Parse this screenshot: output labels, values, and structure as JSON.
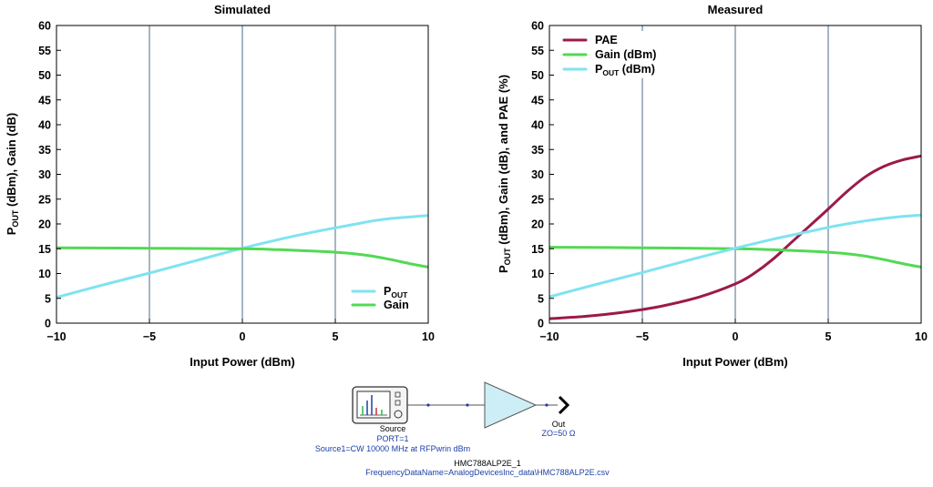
{
  "chart_data": [
    {
      "type": "line",
      "title": "Simulated",
      "xlabel": "Input Power (dBm)",
      "ylabel_main": "P",
      "ylabel_sub": "OUT",
      "ylabel_rest": " (dBm), Gain (dB)",
      "xlim": [
        -10,
        10
      ],
      "ylim": [
        0,
        60
      ],
      "xticks": [
        -10,
        -5,
        0,
        5,
        10
      ],
      "xtick_labels": [
        "−10",
        "−5",
        "0",
        "5",
        "10"
      ],
      "yticks": [
        0,
        5,
        10,
        15,
        20,
        25,
        30,
        35,
        40,
        45,
        50,
        55,
        60
      ],
      "ytick_labels": [
        "0",
        "5",
        "10",
        "15",
        "20",
        "25",
        "30",
        "35",
        "40",
        "45",
        "50",
        "55",
        "60"
      ],
      "grid": "vertical",
      "legend_position": "bottom-right",
      "series": [
        {
          "name": "POUT",
          "name_main": "P",
          "name_sub": "OUT",
          "color": "#7fe3f0",
          "x": [
            -10,
            -7.5,
            -5,
            -2.5,
            0,
            2,
            4,
            5,
            6,
            7,
            8,
            9,
            10
          ],
          "values": [
            5.2,
            7.7,
            10.1,
            12.6,
            15.1,
            16.9,
            18.5,
            19.2,
            19.9,
            20.6,
            21.1,
            21.4,
            21.7
          ]
        },
        {
          "name": "Gain",
          "name_main": "Gain",
          "name_sub": "",
          "color": "#52d953",
          "x": [
            -10,
            -5,
            0,
            2,
            4,
            5,
            6,
            7,
            8,
            9,
            10
          ],
          "values": [
            15.2,
            15.1,
            15.0,
            14.8,
            14.5,
            14.3,
            14.0,
            13.5,
            12.8,
            12.0,
            11.3
          ]
        }
      ]
    },
    {
      "type": "line",
      "title": "Measured",
      "xlabel": "Input Power (dBm)",
      "ylabel_main": "P",
      "ylabel_sub": "OUT",
      "ylabel_rest": " (dBm), Gain (dB), and PAE (%)",
      "xlim": [
        -10,
        10
      ],
      "ylim": [
        0,
        60
      ],
      "xticks": [
        -10,
        -5,
        0,
        5,
        10
      ],
      "xtick_labels": [
        "−10",
        "−5",
        "0",
        "5",
        "10"
      ],
      "yticks": [
        0,
        5,
        10,
        15,
        20,
        25,
        30,
        35,
        40,
        45,
        50,
        55,
        60
      ],
      "ytick_labels": [
        "0",
        "5",
        "10",
        "15",
        "20",
        "25",
        "30",
        "35",
        "40",
        "45",
        "50",
        "55",
        "60"
      ],
      "grid": "vertical",
      "legend_position": "top-left",
      "series": [
        {
          "name": "PAE",
          "name_main": "PAE",
          "name_sub": "",
          "color": "#9b1a4a",
          "x": [
            -10,
            -8,
            -6,
            -4,
            -2,
            0,
            1,
            2,
            3,
            4,
            5,
            6,
            7,
            8,
            9,
            10
          ],
          "values": [
            0.9,
            1.4,
            2.2,
            3.4,
            5.2,
            7.9,
            10.0,
            12.8,
            16.2,
            19.6,
            23.0,
            26.5,
            29.5,
            31.6,
            32.9,
            33.7
          ]
        },
        {
          "name": "Gain (dBm)",
          "name_main": "Gain (dBm)",
          "name_sub": "",
          "color": "#52d953",
          "x": [
            -10,
            -5,
            0,
            2,
            4,
            5,
            6,
            7,
            8,
            9,
            10
          ],
          "values": [
            15.3,
            15.2,
            15.0,
            14.8,
            14.5,
            14.3,
            14.0,
            13.5,
            12.8,
            12.0,
            11.3
          ]
        },
        {
          "name": "POUT (dBm)",
          "name_main": "P",
          "name_sub": "OUT",
          "name_rest": " (dBm)",
          "color": "#7fe3f0",
          "x": [
            -10,
            -7.5,
            -5,
            -2.5,
            0,
            2,
            4,
            5,
            6,
            7,
            8,
            9,
            10
          ],
          "values": [
            5.3,
            7.8,
            10.2,
            12.7,
            15.1,
            16.9,
            18.5,
            19.3,
            20.0,
            20.6,
            21.1,
            21.5,
            21.8
          ]
        }
      ]
    }
  ],
  "schematic": {
    "source_title": "Source",
    "source_port": "PORT=1",
    "source_desc": "Source1=CW  10000 MHz at RFPwrin dBm",
    "out_title": "Out",
    "out_z": "ZO=50 Ω",
    "amp_name": "HMC788ALP2E_1",
    "amp_data": "FrequencyDataName=AnalogDevicesInc_data\\HMC788ALP2E.csv",
    "colors": {
      "amp_fill": "#cdeef6",
      "label_blue": "#1c3fa6"
    }
  }
}
